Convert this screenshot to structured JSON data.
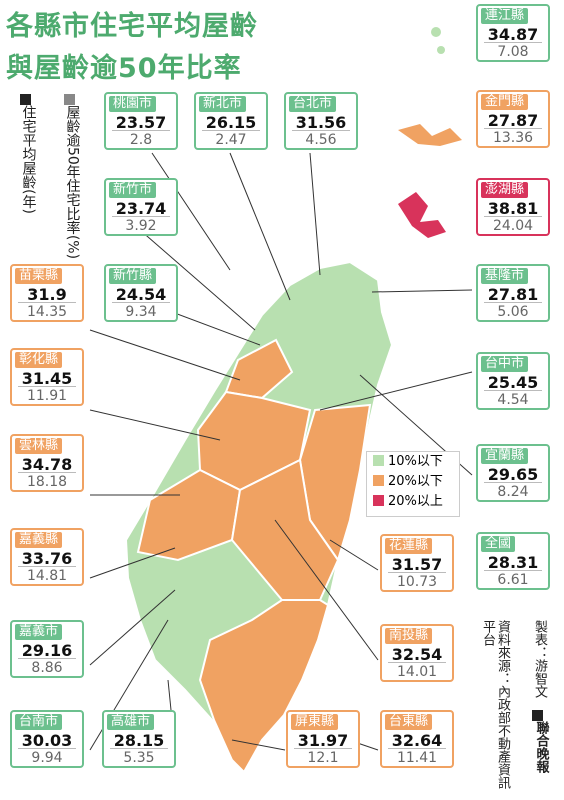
{
  "title": {
    "line1": "各縣市住宅平均屋齡",
    "line2": "與屋齡逾50年比率"
  },
  "legend_avg": "住宅平均屋齡(年)",
  "legend_pct": "屋齡逾50年住宅比率(%)",
  "key": {
    "green": "10%以下",
    "orange": "20%以下",
    "red": "20%以上"
  },
  "colors": {
    "green": "#6cc08e",
    "orange": "#f0a262",
    "red": "#d8335b",
    "title": "#4daa6e"
  },
  "cards": [
    {
      "name": "桃園市",
      "age": "23.57",
      "pct": "2.8",
      "level": "green"
    },
    {
      "name": "新北市",
      "age": "26.15",
      "pct": "2.47",
      "level": "green"
    },
    {
      "name": "台北市",
      "age": "31.56",
      "pct": "4.56",
      "level": "green"
    },
    {
      "name": "新竹市",
      "age": "23.74",
      "pct": "3.92",
      "level": "green"
    },
    {
      "name": "新竹縣",
      "age": "24.54",
      "pct": "9.34",
      "level": "green"
    },
    {
      "name": "苗栗縣",
      "age": "31.9",
      "pct": "14.35",
      "level": "orange"
    },
    {
      "name": "彰化縣",
      "age": "31.45",
      "pct": "11.91",
      "level": "orange"
    },
    {
      "name": "雲林縣",
      "age": "34.78",
      "pct": "18.18",
      "level": "orange"
    },
    {
      "name": "嘉義縣",
      "age": "33.76",
      "pct": "14.81",
      "level": "orange"
    },
    {
      "name": "嘉義市",
      "age": "29.16",
      "pct": "8.86",
      "level": "green"
    },
    {
      "name": "台南市",
      "age": "30.03",
      "pct": "9.94",
      "level": "green"
    },
    {
      "name": "高雄市",
      "age": "28.15",
      "pct": "5.35",
      "level": "green"
    },
    {
      "name": "屏東縣",
      "age": "31.97",
      "pct": "12.1",
      "level": "orange"
    },
    {
      "name": "台東縣",
      "age": "32.64",
      "pct": "11.41",
      "level": "orange"
    },
    {
      "name": "南投縣",
      "age": "32.54",
      "pct": "14.01",
      "level": "orange"
    },
    {
      "name": "花蓮縣",
      "age": "31.57",
      "pct": "10.73",
      "level": "orange"
    },
    {
      "name": "連江縣",
      "age": "34.87",
      "pct": "7.08",
      "level": "green"
    },
    {
      "name": "金門縣",
      "age": "27.87",
      "pct": "13.36",
      "level": "orange"
    },
    {
      "name": "澎湖縣",
      "age": "38.81",
      "pct": "24.04",
      "level": "red"
    },
    {
      "name": "基隆市",
      "age": "27.81",
      "pct": "5.06",
      "level": "green"
    },
    {
      "name": "台中市",
      "age": "25.45",
      "pct": "4.54",
      "level": "green"
    },
    {
      "name": "宜蘭縣",
      "age": "29.65",
      "pct": "8.24",
      "level": "green"
    },
    {
      "name": "全國",
      "age": "28.31",
      "pct": "6.61",
      "level": "green"
    }
  ],
  "credits": {
    "maker": "製表：游智文",
    "source": "資料來源：內政部不動產資訊平台",
    "brand": "聯合晚報"
  }
}
